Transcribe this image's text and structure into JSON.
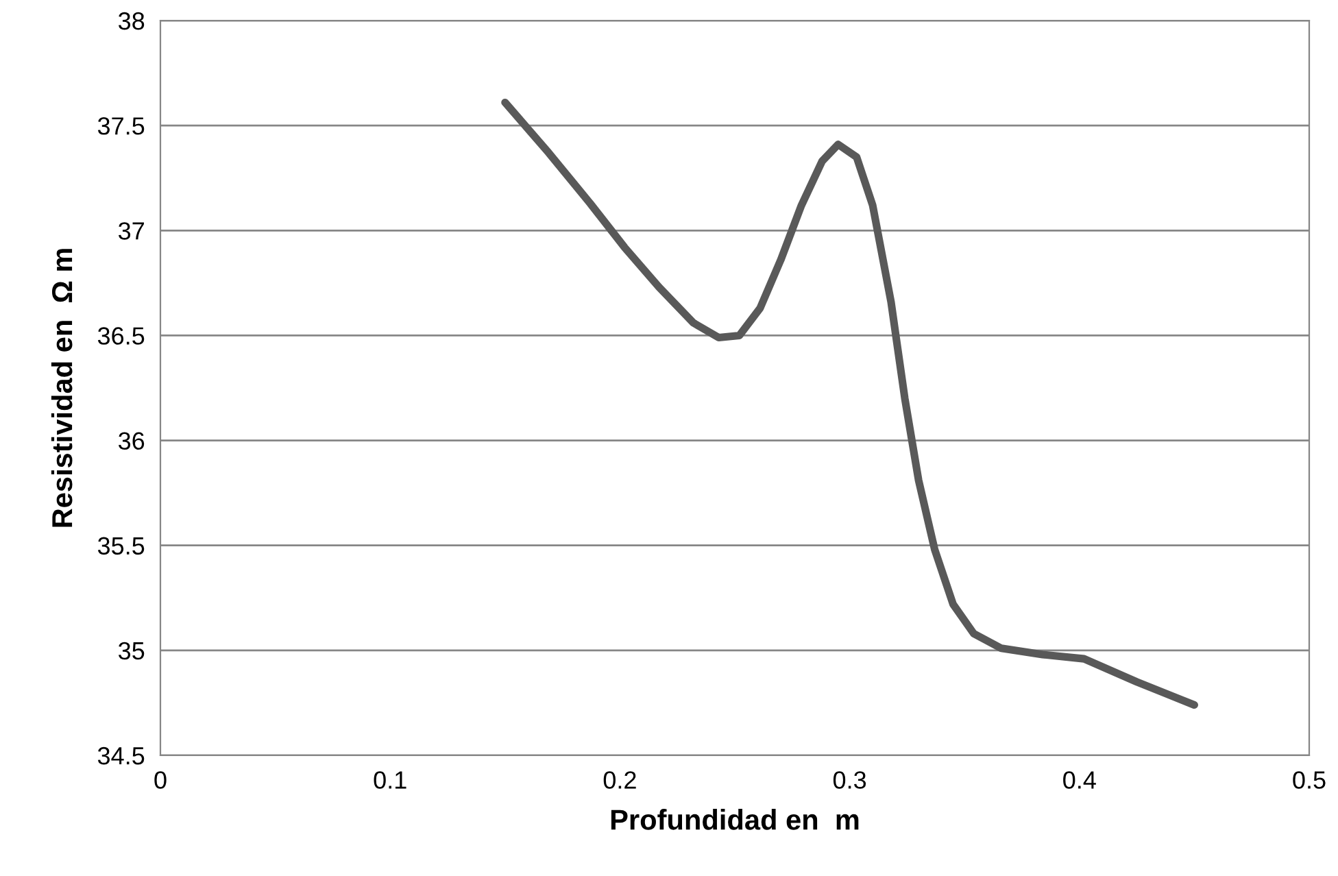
{
  "chart_data": {
    "type": "line",
    "xlabel": "Profundidad en  m",
    "ylabel": "Resistividad en  Ω m",
    "series": [
      {
        "color": "#595959",
        "x": [
          0.15,
          0.169,
          0.187,
          0.202,
          0.217,
          0.232,
          0.243,
          0.252,
          0.261,
          0.27,
          0.279,
          0.288,
          0.295,
          0.303,
          0.31,
          0.318,
          0.324,
          0.33,
          0.337,
          0.345,
          0.354,
          0.366,
          0.384,
          0.402,
          0.425,
          0.45
        ],
        "values": [
          37.61,
          37.37,
          37.13,
          36.92,
          36.73,
          36.56,
          36.49,
          36.5,
          36.63,
          36.86,
          37.12,
          37.33,
          37.41,
          37.35,
          37.12,
          36.66,
          36.2,
          35.81,
          35.48,
          35.22,
          35.08,
          35.01,
          34.98,
          34.96,
          34.85,
          34.74
        ]
      }
    ],
    "xlim": [
      0,
      0.5
    ],
    "xticks": [
      0,
      0.1,
      0.2,
      0.3,
      0.4,
      0.5
    ],
    "ylim": [
      34.5,
      38
    ],
    "yticks": [
      34.5,
      35,
      35.5,
      36,
      36.5,
      37,
      37.5,
      38
    ],
    "grid": "y",
    "marker": "none",
    "line_style": "solid"
  }
}
